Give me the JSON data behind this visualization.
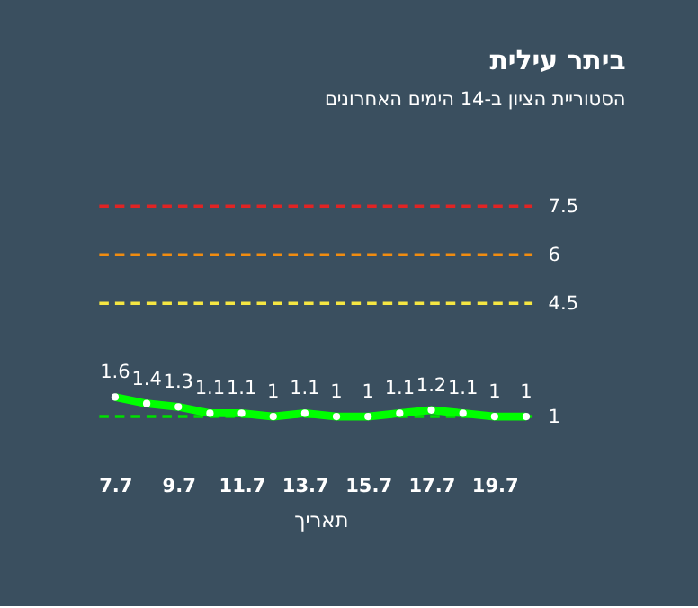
{
  "chart_data": {
    "type": "line",
    "title": "ביתר עילית",
    "subtitle": "הסטוריית הציון ב-14 הימים האחרונים",
    "xlabel": "תאריך",
    "categories": [
      "7.7",
      null,
      "9.7",
      null,
      "11.7",
      null,
      "13.7",
      null,
      "15.7",
      null,
      "17.7",
      null,
      "19.7",
      null
    ],
    "series": [
      {
        "color": "#00ff00",
        "values": [
          1.6,
          1.4,
          1.3,
          1.1,
          1.1,
          1,
          1.1,
          1,
          1,
          1.1,
          1.2,
          1.1,
          1,
          1
        ]
      }
    ],
    "tick_labels": "x",
    "data_labels": true,
    "marker": "circle",
    "line_style": "solid",
    "ref_lines": [
      {
        "axis": "y",
        "value": 7.5,
        "label": "7.5",
        "color": "#e02424",
        "line_style": "dashed"
      },
      {
        "axis": "y",
        "value": 6,
        "label": "6",
        "color": "#f08c10",
        "line_style": "dashed"
      },
      {
        "axis": "y",
        "value": 4.5,
        "label": "4.5",
        "color": "#f5e642",
        "line_style": "dashed"
      },
      {
        "axis": "y",
        "value": 1,
        "label": "1",
        "color": "#00e000",
        "line_style": "dashed"
      }
    ]
  }
}
